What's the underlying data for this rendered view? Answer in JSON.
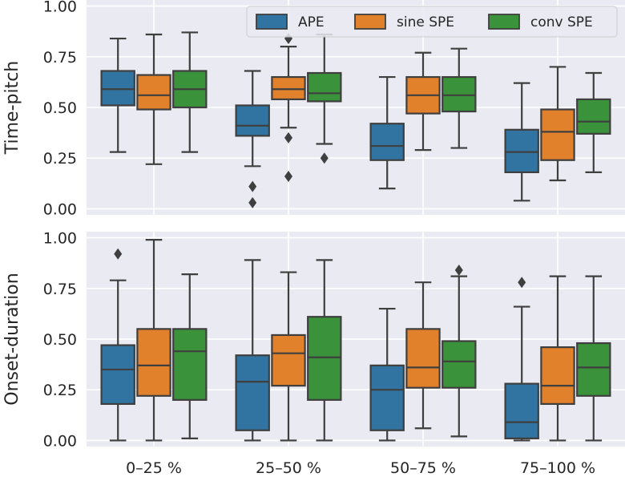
{
  "chart_data": {
    "type": "box",
    "categories": [
      "0–25 %",
      "25–50 %",
      "50–75 %",
      "75–100 %"
    ],
    "xlabel": "",
    "grid": true,
    "legend_placement": "top-right",
    "series": [
      {
        "name": "APE",
        "color": "#3274a1"
      },
      {
        "name": "sine SPE",
        "color": "#e1812c"
      },
      {
        "name": "conv SPE",
        "color": "#3a923a"
      }
    ],
    "panels": [
      {
        "ylabel": "Time-pitch",
        "ylim": [
          -0.03,
          1.03
        ],
        "yticks": [
          "0.00",
          "0.25",
          "0.50",
          "0.75",
          "1.00"
        ],
        "legend": true,
        "groups": [
          [
            {
              "whislo": 0.28,
              "q1": 0.51,
              "med": 0.59,
              "q3": 0.68,
              "whishi": 0.84,
              "fliers": []
            },
            {
              "whislo": 0.22,
              "q1": 0.49,
              "med": 0.56,
              "q3": 0.66,
              "whishi": 0.86,
              "fliers": []
            },
            {
              "whislo": 0.28,
              "q1": 0.5,
              "med": 0.59,
              "q3": 0.68,
              "whishi": 0.87,
              "fliers": []
            }
          ],
          [
            {
              "whislo": 0.21,
              "q1": 0.36,
              "med": 0.41,
              "q3": 0.51,
              "whishi": 0.68,
              "fliers": [
                0.11,
                0.03
              ]
            },
            {
              "whislo": 0.4,
              "q1": 0.54,
              "med": 0.59,
              "q3": 0.65,
              "whishi": 0.8,
              "fliers": [
                0.84,
                0.35,
                0.16
              ]
            },
            {
              "whislo": 0.32,
              "q1": 0.53,
              "med": 0.57,
              "q3": 0.67,
              "whishi": 0.86,
              "fliers": [
                0.25
              ]
            }
          ],
          [
            {
              "whislo": 0.1,
              "q1": 0.24,
              "med": 0.31,
              "q3": 0.42,
              "whishi": 0.65,
              "fliers": []
            },
            {
              "whislo": 0.29,
              "q1": 0.47,
              "med": 0.56,
              "q3": 0.65,
              "whishi": 0.77,
              "fliers": []
            },
            {
              "whislo": 0.3,
              "q1": 0.48,
              "med": 0.56,
              "q3": 0.65,
              "whishi": 0.79,
              "fliers": []
            }
          ],
          [
            {
              "whislo": 0.04,
              "q1": 0.18,
              "med": 0.28,
              "q3": 0.39,
              "whishi": 0.62,
              "fliers": []
            },
            {
              "whislo": 0.14,
              "q1": 0.24,
              "med": 0.38,
              "q3": 0.49,
              "whishi": 0.7,
              "fliers": []
            },
            {
              "whislo": 0.18,
              "q1": 0.37,
              "med": 0.43,
              "q3": 0.54,
              "whishi": 0.67,
              "fliers": []
            }
          ]
        ]
      },
      {
        "ylabel": "Onset-duration",
        "ylim": [
          -0.03,
          1.03
        ],
        "yticks": [
          "0.00",
          "0.25",
          "0.50",
          "0.75",
          "1.00"
        ],
        "legend": false,
        "groups": [
          [
            {
              "whislo": 0.0,
              "q1": 0.18,
              "med": 0.35,
              "q3": 0.47,
              "whishi": 0.79,
              "fliers": [
                0.92
              ]
            },
            {
              "whislo": 0.0,
              "q1": 0.22,
              "med": 0.37,
              "q3": 0.55,
              "whishi": 0.99,
              "fliers": []
            },
            {
              "whislo": 0.01,
              "q1": 0.2,
              "med": 0.44,
              "q3": 0.55,
              "whishi": 0.82,
              "fliers": []
            }
          ],
          [
            {
              "whislo": 0.0,
              "q1": 0.05,
              "med": 0.29,
              "q3": 0.42,
              "whishi": 0.89,
              "fliers": []
            },
            {
              "whislo": 0.0,
              "q1": 0.27,
              "med": 0.43,
              "q3": 0.52,
              "whishi": 0.83,
              "fliers": []
            },
            {
              "whislo": 0.0,
              "q1": 0.2,
              "med": 0.41,
              "q3": 0.61,
              "whishi": 0.89,
              "fliers": []
            }
          ],
          [
            {
              "whislo": 0.0,
              "q1": 0.05,
              "med": 0.25,
              "q3": 0.37,
              "whishi": 0.65,
              "fliers": []
            },
            {
              "whislo": 0.06,
              "q1": 0.26,
              "med": 0.36,
              "q3": 0.55,
              "whishi": 0.78,
              "fliers": []
            },
            {
              "whislo": 0.02,
              "q1": 0.26,
              "med": 0.39,
              "q3": 0.49,
              "whishi": 0.81,
              "fliers": [
                0.84
              ]
            }
          ],
          [
            {
              "whislo": 0.0,
              "q1": 0.01,
              "med": 0.09,
              "q3": 0.28,
              "whishi": 0.66,
              "fliers": [
                0.78
              ]
            },
            {
              "whislo": 0.0,
              "q1": 0.18,
              "med": 0.27,
              "q3": 0.46,
              "whishi": 0.81,
              "fliers": []
            },
            {
              "whislo": 0.0,
              "q1": 0.22,
              "med": 0.36,
              "q3": 0.48,
              "whishi": 0.81,
              "fliers": []
            }
          ]
        ]
      }
    ]
  }
}
